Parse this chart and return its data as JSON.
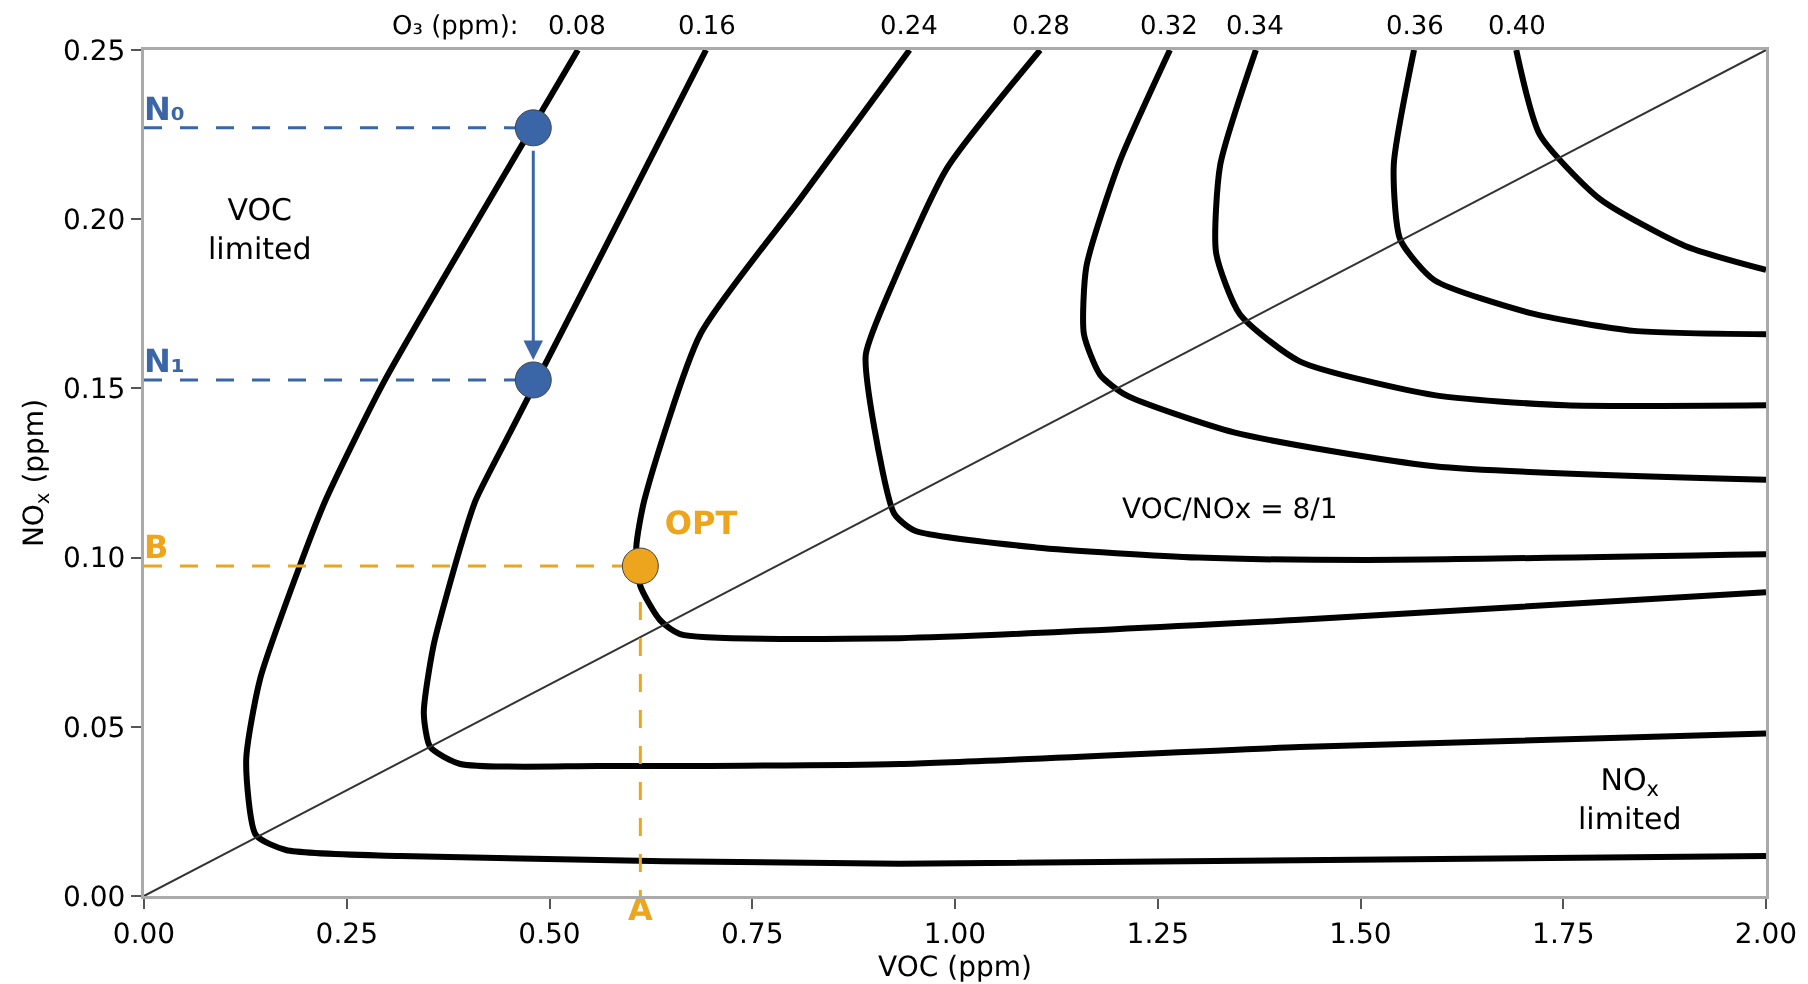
{
  "chart_data": {
    "type": "line",
    "xlabel": "VOC (ppm)",
    "ylabel": "NO$_{x}$ (ppm)",
    "legend_title": "O₃ (ppm):",
    "legend": false,
    "grid": false,
    "marker": "none",
    "line_style": "solid",
    "xlim": [
      0,
      2
    ],
    "ylim": [
      0,
      0.25
    ],
    "xticks": [
      {
        "value": 0,
        "label": "0.00"
      },
      {
        "value": 0.25,
        "label": "0.25"
      },
      {
        "value": 0.5,
        "label": "0.50"
      },
      {
        "value": 0.75,
        "label": "0.75"
      },
      {
        "value": 1,
        "label": "1.00"
      },
      {
        "value": 1.25,
        "label": "1.25"
      },
      {
        "value": 1.5,
        "label": "1.50"
      },
      {
        "value": 1.75,
        "label": "1.75"
      },
      {
        "value": 2,
        "label": "2.00"
      }
    ],
    "yticks": [
      {
        "value": 0,
        "label": "0.00"
      },
      {
        "value": 0.05,
        "label": "0.05"
      },
      {
        "value": 0.1,
        "label": "0.10"
      },
      {
        "value": 0.15,
        "label": "0.15"
      },
      {
        "value": 0.2,
        "label": "0.20"
      },
      {
        "value": 0.25,
        "label": "0.25"
      }
    ],
    "series": [
      {
        "name": "0.08",
        "color": "#000000",
        "x": [
          0.535,
          0.503,
          0.296,
          0.224,
          0.192,
          0.143,
          0.126,
          0.138,
          0.175,
          0.316,
          0.932,
          2.0
        ],
        "values": [
          0.25,
          0.237,
          0.152,
          0.117,
          0.0975,
          0.064,
          0.04,
          0.018,
          0.0136,
          0.0118,
          0.0095,
          0.0118
        ]
      },
      {
        "name": "0.16",
        "color": "#000000",
        "x": [
          0.693,
          0.565,
          0.458,
          0.409,
          0.39,
          0.357,
          0.345,
          0.353,
          0.39,
          0.562,
          0.932,
          1.425,
          2.0
        ],
        "values": [
          0.25,
          0.19,
          0.14,
          0.117,
          0.103,
          0.074,
          0.054,
          0.044,
          0.039,
          0.0384,
          0.039,
          0.044,
          0.048
        ]
      },
      {
        "name": "0.24",
        "color": "#000000",
        "x": [
          0.944,
          0.809,
          0.686,
          0.617,
          0.607,
          0.612,
          0.636,
          0.661,
          0.932,
          1.425,
          2.0
        ],
        "values": [
          0.25,
          0.206,
          0.166,
          0.117,
          0.103,
          0.0916,
          0.0816,
          0.0774,
          0.0762,
          0.0816,
          0.0898
        ]
      },
      {
        "name": "0.28",
        "color": "#000000",
        "x": [
          1.105,
          0.99,
          0.925,
          0.89,
          0.9,
          0.925,
          0.95,
          1.1,
          1.3,
          1.507,
          2.0
        ],
        "values": [
          0.25,
          0.215,
          0.182,
          0.16,
          0.139,
          0.113,
          0.108,
          0.103,
          0.1,
          0.0993,
          0.101
        ]
      },
      {
        "name": "0.32",
        "color": "#000000",
        "x": [
          1.265,
          1.203,
          1.162,
          1.159,
          1.179,
          1.211,
          1.344,
          1.591,
          2.0
        ],
        "values": [
          0.25,
          0.217,
          0.186,
          0.166,
          0.154,
          0.148,
          0.137,
          0.127,
          0.123
        ]
      },
      {
        "name": "0.34",
        "color": "#000000",
        "x": [
          1.371,
          1.327,
          1.322,
          1.351,
          1.425,
          1.591,
          1.753,
          2.0
        ],
        "values": [
          0.25,
          0.216,
          0.19,
          0.172,
          0.158,
          0.148,
          0.145,
          0.145
        ]
      },
      {
        "name": "0.36",
        "color": "#000000",
        "x": [
          1.566,
          1.541,
          1.549,
          1.591,
          1.714,
          1.837,
          2.0
        ],
        "values": [
          0.25,
          0.216,
          0.194,
          0.182,
          0.172,
          0.167,
          0.166
        ]
      },
      {
        "name": "0.40",
        "color": "#000000",
        "x": [
          1.692,
          1.721,
          1.795,
          1.901,
          2.0
        ],
        "values": [
          0.25,
          0.225,
          0.206,
          0.192,
          0.185
        ]
      },
      {
        "color": "#333333",
        "x": [
          0,
          2
        ],
        "values": [
          0,
          0.25
        ]
      },
      {
        "color": "#3a66a8",
        "line_style": "dashed",
        "x": [
          0,
          0.48
        ],
        "values": [
          0.227,
          0.227
        ],
        "value_labels": [
          "N₀",
          null
        ]
      },
      {
        "color": "#3a66a8",
        "line_style": "dashed",
        "x": [
          0,
          0.48
        ],
        "values": [
          0.1525,
          0.1525
        ],
        "value_labels": [
          "N₁",
          null
        ]
      },
      {
        "color": "#eca51c",
        "line_style": "dashed",
        "x": [
          0,
          0.612
        ],
        "values": [
          0.0975,
          0.0975
        ],
        "value_labels": [
          "B",
          null
        ]
      },
      {
        "color": "#eca51c",
        "line_style": "dashed",
        "x": [
          0.612,
          0.612
        ],
        "values": [
          0.0975,
          0
        ],
        "value_labels": [
          null,
          "A"
        ]
      },
      {
        "type": "scatter",
        "color": "#3a66a8",
        "marker": "circle",
        "x": [
          0.48,
          0.48
        ],
        "values": [
          0.227,
          0.1525
        ]
      },
      {
        "type": "scatter",
        "color": "#eca51c",
        "marker": "circle",
        "x": [
          0.612
        ],
        "values": [
          0.0975
        ],
        "value_labels": [
          "OPT"
        ]
      }
    ],
    "annotations": [
      "VOC\nlimited",
      "NO$_{x}$\nlimited",
      "VOC/NOx = 8/1"
    ]
  }
}
